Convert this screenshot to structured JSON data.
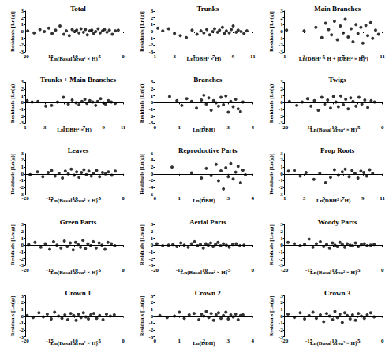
{
  "chart_data": [
    {
      "type": "scatter",
      "title": "Total",
      "x_label": "Ln(Basal area² × H)",
      "y_label": "Residuals [Ln(g)]",
      "xlim": [
        -20,
        0
      ],
      "xticks": [
        -20,
        -15,
        -10,
        -5,
        0
      ],
      "ylim": [
        -3,
        3
      ],
      "yticks": [
        -3,
        -2,
        -1,
        0,
        1,
        2,
        3
      ],
      "color": "#000000",
      "marker": "circle",
      "grid": false,
      "x": [
        -19.5,
        -18.2,
        -17.0,
        -16.1,
        -15.2,
        -14.5,
        -13.8,
        -12.9,
        -12.1,
        -11.6,
        -11.0,
        -10.4,
        -9.9,
        -9.5,
        -9.0,
        -8.6,
        -8.1,
        -7.7,
        -7.3,
        -6.8,
        -6.4,
        -6.0,
        -5.6,
        -5.1,
        -4.7,
        -4.2,
        -3.8,
        -3.3,
        -2.8,
        -2.2,
        -1.6,
        -1.0
      ],
      "values": [
        0.1,
        -0.2,
        0.3,
        0.0,
        0.5,
        -0.3,
        0.2,
        0.8,
        -0.4,
        0.1,
        -0.6,
        0.3,
        0.0,
        0.2,
        -0.2,
        0.4,
        -0.1,
        0.3,
        -0.5,
        0.1,
        0.2,
        -0.3,
        0.0,
        0.4,
        -0.2,
        0.1,
        0.3,
        -0.1,
        0.2,
        -0.4,
        0.1,
        0.2
      ]
    },
    {
      "type": "scatter",
      "title": "Trunks",
      "x_label": "Ln(DBH² × H)",
      "y_label": "Residuals [Ln(g)]",
      "xlim": [
        1,
        11
      ],
      "xticks": [
        1,
        3,
        5,
        7,
        9,
        11
      ],
      "ylim": [
        -3,
        3
      ],
      "yticks": [
        -3,
        -2,
        -1,
        0,
        1,
        2,
        3
      ],
      "color": "#000000",
      "marker": "circle",
      "grid": false,
      "x": [
        1.3,
        1.8,
        2.4,
        3.0,
        3.6,
        4.2,
        4.8,
        5.3,
        5.7,
        6.0,
        6.3,
        6.6,
        6.9,
        7.1,
        7.4,
        7.6,
        7.9,
        8.1,
        8.3,
        8.6,
        8.8,
        9.0,
        9.3,
        9.5,
        9.8,
        10.1,
        10.4
      ],
      "values": [
        0.5,
        0.1,
        0.4,
        -0.3,
        -0.6,
        -0.9,
        0.2,
        -0.4,
        0.1,
        -0.2,
        0.3,
        -0.5,
        0.0,
        0.4,
        -0.1,
        0.2,
        0.6,
        -0.3,
        0.1,
        -0.2,
        0.3,
        0.8,
        -0.1,
        0.2,
        0.0,
        -0.3,
        0.1
      ]
    },
    {
      "type": "scatter",
      "title": "Main Branches",
      "x_label": "Ln(DBH² + H + [DBH² × H]²)",
      "y_label": "Residuals [Ln(g)]",
      "xlim": [
        1,
        11
      ],
      "xticks": [
        1,
        3,
        5,
        7,
        9,
        11
      ],
      "ylim": [
        -3,
        3
      ],
      "yticks": [
        -3,
        -2,
        -1,
        0,
        1,
        2,
        3
      ],
      "color": "#000000",
      "marker": "circle",
      "grid": false,
      "x": [
        1.2,
        3.0,
        4.2,
        4.8,
        5.2,
        5.5,
        5.8,
        6.1,
        6.4,
        6.7,
        7.0,
        7.2,
        7.5,
        7.8,
        8.0,
        8.3,
        8.5,
        8.8,
        9.0,
        9.3,
        9.5,
        9.8,
        10.0,
        10.3,
        10.6
      ],
      "values": [
        0.2,
        0.1,
        0.6,
        -0.9,
        1.2,
        0.3,
        -0.5,
        1.5,
        -1.2,
        0.8,
        -0.2,
        1.8,
        -0.8,
        0.4,
        -1.5,
        1.0,
        -0.3,
        0.6,
        -1.7,
        0.9,
        -0.6,
        1.3,
        -1.0,
        0.2,
        -0.4
      ]
    },
    {
      "type": "scatter",
      "title": "Trunks + Main Branches",
      "x_label": "Ln(DBH² × H)",
      "y_label": "Residuals [Ln(g)]",
      "xlim": [
        1,
        11
      ],
      "xticks": [
        1,
        3,
        5,
        7,
        9,
        11
      ],
      "ylim": [
        -3,
        3
      ],
      "yticks": [
        -3,
        -2,
        -1,
        0,
        1,
        2,
        3
      ],
      "color": "#000000",
      "marker": "circle",
      "grid": false,
      "x": [
        1.2,
        1.7,
        2.3,
        3.1,
        3.7,
        4.3,
        4.9,
        5.4,
        5.8,
        6.2,
        6.5,
        6.8,
        7.1,
        7.3,
        7.6,
        7.9,
        8.2,
        8.4,
        8.7,
        9.0,
        9.2,
        9.5,
        9.8,
        10.2
      ],
      "values": [
        0.3,
        0.1,
        0.2,
        -0.5,
        -0.4,
        0.1,
        0.8,
        -0.2,
        0.4,
        0.0,
        -0.3,
        0.2,
        0.5,
        -0.1,
        0.3,
        0.1,
        -0.4,
        0.2,
        0.6,
        0.0,
        -0.2,
        0.3,
        0.1,
        -0.1
      ]
    },
    {
      "type": "scatter",
      "title": "Branches",
      "x_label": "Ln(DBH)",
      "y_label": "Residuals [Ln(g)]",
      "xlim": [
        0,
        4
      ],
      "xticks": [
        0,
        1,
        2,
        3,
        4
      ],
      "ylim": [
        -3,
        3
      ],
      "yticks": [
        -3,
        -2,
        -1,
        0,
        1,
        2,
        3
      ],
      "color": "#000000",
      "marker": "circle",
      "grid": false,
      "x": [
        0.6,
        0.9,
        1.1,
        1.3,
        1.5,
        1.7,
        1.9,
        2.0,
        2.1,
        2.2,
        2.3,
        2.4,
        2.5,
        2.6,
        2.7,
        2.8,
        2.9,
        3.0,
        3.1,
        3.2,
        3.3,
        3.4,
        3.5,
        3.6
      ],
      "values": [
        0.9,
        0.3,
        -0.4,
        0.6,
        0.2,
        -0.8,
        0.4,
        1.1,
        -0.2,
        0.7,
        -1.1,
        0.3,
        0.0,
        -0.5,
        0.8,
        -0.3,
        1.0,
        -1.4,
        0.2,
        -0.6,
        0.5,
        -0.9,
        -1.3,
        0.1
      ]
    },
    {
      "type": "scatter",
      "title": "Twigs",
      "x_label": "Ln(Basal area² × H)",
      "y_label": "Residuals [Ln(g)]",
      "xlim": [
        -20,
        0
      ],
      "xticks": [
        -20,
        -15,
        -10,
        -5,
        0
      ],
      "ylim": [
        -3,
        3
      ],
      "yticks": [
        -3,
        -2,
        -1,
        0,
        1,
        2,
        3
      ],
      "color": "#000000",
      "marker": "circle",
      "grid": false,
      "x": [
        -19.0,
        -17.5,
        -16.4,
        -15.3,
        -14.6,
        -13.9,
        -13.1,
        -12.4,
        -11.8,
        -11.2,
        -10.6,
        -10.0,
        -9.5,
        -9.0,
        -8.5,
        -8.0,
        -7.5,
        -7.0,
        -6.5,
        -6.0,
        -5.4,
        -4.8,
        -4.2,
        -3.6,
        -3.0,
        -2.3,
        -1.6
      ],
      "values": [
        0.2,
        -0.4,
        0.1,
        0.6,
        -0.5,
        0.3,
        -1.1,
        0.8,
        -0.2,
        0.4,
        -0.8,
        0.9,
        0.1,
        -0.6,
        1.0,
        -0.3,
        0.5,
        -0.9,
        0.7,
        0.2,
        -0.5,
        0.8,
        -0.2,
        0.4,
        -0.7,
        0.3,
        0.1
      ]
    },
    {
      "type": "scatter",
      "title": "Leaves",
      "x_label": "Ln(Basal area² × H)",
      "y_label": "Residuals [Ln(g)]",
      "xlim": [
        -20,
        0
      ],
      "xticks": [
        -20,
        -15,
        -10,
        -5,
        0
      ],
      "ylim": [
        -3,
        3
      ],
      "yticks": [
        -3,
        -2,
        -1,
        0,
        1,
        2,
        3
      ],
      "color": "#000000",
      "marker": "circle",
      "grid": false,
      "x": [
        -19.0,
        -17.5,
        -16.4,
        -15.3,
        -14.6,
        -13.9,
        -13.1,
        -12.4,
        -11.8,
        -11.2,
        -10.6,
        -10.0,
        -9.5,
        -9.0,
        -8.5,
        -8.0,
        -7.5,
        -7.0,
        -6.5,
        -6.0,
        -5.4,
        -4.8,
        -4.2,
        -3.6,
        -3.0,
        -2.3,
        -1.6
      ],
      "values": [
        -0.1,
        0.3,
        -0.4,
        0.2,
        0.5,
        -0.3,
        0.1,
        -0.6,
        0.4,
        0.0,
        0.7,
        -0.2,
        0.3,
        -0.5,
        0.2,
        0.6,
        -0.1,
        0.4,
        -0.3,
        0.1,
        0.5,
        -0.4,
        0.2,
        0.0,
        0.3,
        -0.2,
        0.4
      ]
    },
    {
      "type": "scatter",
      "title": "Reproductive Parts",
      "x_label": "Ln(DBH)",
      "y_label": "Residuals [Ln(g)]",
      "xlim": [
        0,
        4
      ],
      "xticks": [
        0,
        1,
        2,
        3,
        4
      ],
      "ylim": [
        -6,
        6
      ],
      "yticks": [
        -6,
        -4,
        -2,
        0,
        2,
        4,
        6
      ],
      "color": "#000000",
      "marker": "circle",
      "grid": false,
      "x": [
        0.7,
        1.5,
        1.9,
        2.1,
        2.3,
        2.5,
        2.6,
        2.7,
        2.8,
        2.9,
        3.0,
        3.1,
        3.2,
        3.3,
        3.4,
        3.5,
        3.6,
        3.7
      ],
      "values": [
        2.0,
        0.3,
        -1.2,
        1.6,
        -0.5,
        2.8,
        -2.0,
        0.9,
        -4.4,
        1.8,
        -0.8,
        3.0,
        -1.5,
        0.5,
        2.2,
        -2.6,
        1.1,
        -0.3
      ]
    },
    {
      "type": "scatter",
      "title": "Prop Roots",
      "x_label": "Ln(DBH² × H)",
      "y_label": "Residuals [Ln(g)]",
      "xlim": [
        1,
        11
      ],
      "xticks": [
        1,
        3,
        5,
        7,
        9,
        11
      ],
      "ylim": [
        -3,
        3
      ],
      "yticks": [
        -3,
        -2,
        -1,
        0,
        1,
        2,
        3
      ],
      "color": "#000000",
      "marker": "circle",
      "grid": false,
      "x": [
        1.4,
        2.0,
        2.6,
        3.2,
        4.0,
        4.6,
        5.2,
        5.7,
        6.1,
        6.5,
        6.9,
        7.2,
        7.6,
        7.9,
        8.2,
        8.5,
        8.8,
        9.1,
        9.4,
        9.7,
        10.0
      ],
      "values": [
        0.4,
        0.5,
        -0.3,
        0.2,
        -0.8,
        0.1,
        -1.3,
        -0.5,
        0.6,
        -0.2,
        0.3,
        0.7,
        -0.4,
        0.5,
        0.1,
        -0.6,
        0.4,
        0.2,
        -0.3,
        0.6,
        0.1
      ]
    },
    {
      "type": "scatter",
      "title": "Green Parts",
      "x_label": "Ln(Basal area² × H)",
      "y_label": "Residuals [Ln(g)]",
      "xlim": [
        -20,
        0
      ],
      "xticks": [
        -20,
        -15,
        -10,
        -5,
        0
      ],
      "ylim": [
        -3,
        3
      ],
      "yticks": [
        -3,
        -2,
        -1,
        0,
        1,
        2,
        3
      ],
      "color": "#000000",
      "marker": "circle",
      "grid": false,
      "x": [
        -19.3,
        -18.0,
        -16.8,
        -15.9,
        -15.0,
        -14.2,
        -13.5,
        -12.7,
        -12.0,
        -11.4,
        -10.8,
        -10.2,
        -9.7,
        -9.2,
        -8.7,
        -8.2,
        -7.7,
        -7.2,
        -6.6,
        -6.1,
        -5.5,
        -4.9,
        -4.3,
        -3.7,
        -3.1,
        -2.4,
        -1.7
      ],
      "values": [
        0.1,
        0.4,
        -0.3,
        0.2,
        -0.6,
        0.5,
        0.0,
        -0.4,
        0.6,
        -0.2,
        0.3,
        -0.7,
        0.4,
        0.1,
        -0.3,
        0.7,
        -0.5,
        0.2,
        -0.1,
        0.5,
        -0.4,
        0.3,
        0.0,
        -0.6,
        0.4,
        0.2,
        -0.1
      ]
    },
    {
      "type": "scatter",
      "title": "Aerial Parts",
      "x_label": "Ln(Basal area² × H)",
      "y_label": "Residuals [Ln(g)]",
      "xlim": [
        -20,
        0
      ],
      "xticks": [
        -20,
        -15,
        -10,
        -5,
        0
      ],
      "ylim": [
        -3,
        3
      ],
      "yticks": [
        -3,
        -2,
        -1,
        0,
        1,
        2,
        3
      ],
      "color": "#000000",
      "marker": "circle",
      "grid": false,
      "x": [
        -19.6,
        -18.4,
        -17.2,
        -16.3,
        -15.5,
        -14.7,
        -14.0,
        -13.2,
        -12.5,
        -11.9,
        -11.3,
        -10.7,
        -10.1,
        -9.6,
        -9.1,
        -8.6,
        -8.1,
        -7.6,
        -7.1,
        -6.6,
        -6.0,
        -5.4,
        -4.8,
        -4.1,
        -3.4,
        -2.6,
        -1.8
      ],
      "values": [
        0.2,
        -0.1,
        0.0,
        0.1,
        -0.2,
        0.3,
        0.0,
        -0.3,
        0.2,
        0.5,
        -0.1,
        0.1,
        -0.4,
        0.2,
        0.0,
        0.3,
        -0.2,
        0.1,
        0.4,
        -0.1,
        0.2,
        0.0,
        -0.3,
        0.1,
        0.2,
        -0.1,
        0.0
      ]
    },
    {
      "type": "scatter",
      "title": "Woody Parts",
      "x_label": "Ln(Basal area² × H)",
      "y_label": "Residuals [Ln(g)]",
      "xlim": [
        -20,
        0
      ],
      "xticks": [
        -20,
        -15,
        -10,
        -5,
        0
      ],
      "ylim": [
        -3,
        3
      ],
      "yticks": [
        -3,
        -2,
        -1,
        0,
        1,
        2,
        3
      ],
      "color": "#000000",
      "marker": "circle",
      "grid": false,
      "x": [
        -19.3,
        -18.0,
        -16.8,
        -15.9,
        -15.0,
        -14.2,
        -13.5,
        -12.7,
        -12.0,
        -11.4,
        -10.8,
        -10.2,
        -9.7,
        -9.2,
        -8.7,
        -8.2,
        -7.7,
        -7.2,
        -6.6,
        -6.1,
        -5.5,
        -4.9,
        -4.3,
        -3.7,
        -3.1,
        -2.4,
        -1.7
      ],
      "values": [
        0.4,
        0.2,
        -0.1,
        0.1,
        0.9,
        -0.3,
        0.2,
        0.5,
        -0.2,
        0.1,
        -0.4,
        0.3,
        0.0,
        -0.2,
        0.4,
        0.1,
        -0.3,
        0.2,
        0.0,
        -0.1,
        0.3,
        -0.2,
        0.1,
        0.2,
        -0.1,
        0.0,
        0.1
      ]
    },
    {
      "type": "scatter",
      "title": "Crown 1",
      "x_label": "Ln(Basal area² × H)",
      "y_label": "Residuals [Ln(g)]",
      "xlim": [
        -20,
        0
      ],
      "xticks": [
        -20,
        -15,
        -10,
        -5,
        0
      ],
      "ylim": [
        -3,
        3
      ],
      "yticks": [
        -3,
        -2,
        -1,
        0,
        1,
        2,
        3
      ],
      "color": "#000000",
      "marker": "circle",
      "grid": false,
      "x": [
        -19.6,
        -18.4,
        -17.2,
        -16.3,
        -15.5,
        -14.7,
        -14.0,
        -13.2,
        -12.5,
        -11.9,
        -11.3,
        -10.7,
        -10.1,
        -9.6,
        -9.1,
        -8.6,
        -8.1,
        -7.6,
        -7.1,
        -6.6,
        -6.0,
        -5.4,
        -4.8,
        -4.1,
        -3.4,
        -2.6,
        -1.8
      ],
      "values": [
        0.1,
        -0.2,
        0.5,
        -0.1,
        0.3,
        -0.4,
        0.6,
        0.0,
        -0.3,
        0.2,
        -0.5,
        0.4,
        0.1,
        -0.6,
        0.3,
        -0.2,
        0.5,
        -0.1,
        -0.4,
        0.2,
        0.4,
        -0.3,
        0.1,
        -0.5,
        0.3,
        0.0,
        0.2
      ]
    },
    {
      "type": "scatter",
      "title": "Crown 2",
      "x_label": "Ln(DBH)",
      "y_label": "Residuals [Ln(g)]",
      "xlim": [
        0,
        4
      ],
      "xticks": [
        0,
        1,
        2,
        3,
        4
      ],
      "ylim": [
        -3,
        3
      ],
      "yticks": [
        -3,
        -2,
        -1,
        0,
        1,
        2,
        3
      ],
      "color": "#000000",
      "marker": "circle",
      "grid": false,
      "x": [
        0.2,
        0.5,
        0.8,
        1.0,
        1.2,
        1.4,
        1.6,
        1.8,
        1.9,
        2.0,
        2.1,
        2.2,
        2.3,
        2.4,
        2.5,
        2.6,
        2.7,
        2.8,
        2.9,
        3.0,
        3.1,
        3.2,
        3.3,
        3.4,
        3.5,
        3.6
      ],
      "values": [
        0.1,
        -0.2,
        0.0,
        0.6,
        -0.3,
        0.2,
        0.4,
        -0.5,
        0.3,
        0.0,
        0.7,
        -0.2,
        0.4,
        -0.6,
        0.2,
        0.5,
        -0.3,
        0.1,
        0.6,
        -0.4,
        0.2,
        -0.1,
        0.3,
        -0.5,
        0.1,
        0.2
      ]
    },
    {
      "type": "scatter",
      "title": "Crown 3",
      "x_label": "Ln(Basal area² × H)",
      "y_label": "Residuals [Ln(g)]",
      "xlim": [
        -20,
        0
      ],
      "xticks": [
        -20,
        -15,
        -10,
        -5,
        0
      ],
      "ylim": [
        -3,
        3
      ],
      "yticks": [
        -3,
        -2,
        -1,
        0,
        1,
        2,
        3
      ],
      "color": "#000000",
      "marker": "circle",
      "grid": false,
      "x": [
        -19.3,
        -18.0,
        -16.8,
        -15.9,
        -15.0,
        -14.2,
        -13.5,
        -12.7,
        -12.0,
        -11.4,
        -10.8,
        -10.2,
        -9.7,
        -9.2,
        -8.7,
        -8.2,
        -7.7,
        -7.2,
        -6.6,
        -6.1,
        -5.5,
        -4.9,
        -4.3,
        -3.7,
        -3.1,
        -2.4,
        -1.7
      ],
      "values": [
        0.3,
        -0.2,
        0.5,
        -0.4,
        0.1,
        0.6,
        -0.3,
        0.2,
        -0.8,
        0.4,
        0.0,
        -0.5,
        0.7,
        -0.2,
        0.3,
        -0.9,
        0.5,
        0.1,
        -0.4,
        0.2,
        -0.6,
        0.4,
        0.0,
        -0.3,
        0.2,
        0.5,
        -0.1
      ]
    }
  ]
}
